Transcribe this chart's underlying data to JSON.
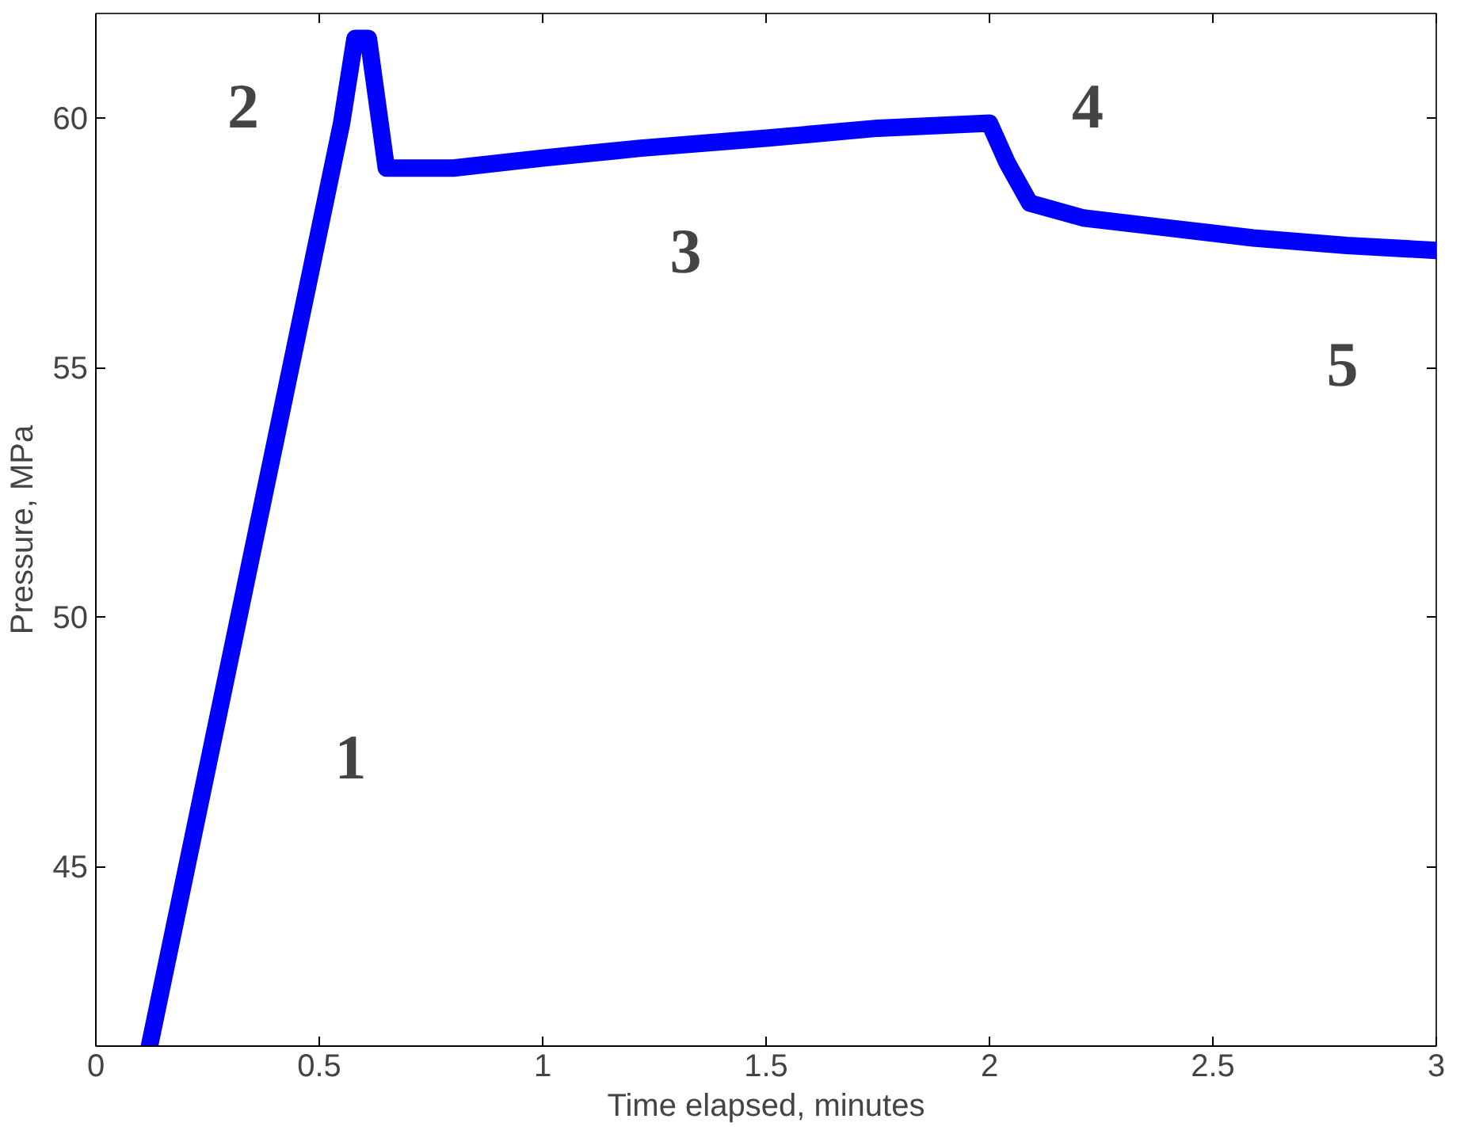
{
  "chart_data": {
    "type": "line",
    "xlabel": "Time elapsed, minutes",
    "ylabel": "Pressure, MPa",
    "xlim": [
      0,
      3
    ],
    "ylim": [
      41.4,
      62.1
    ],
    "xticks": [
      0,
      0.5,
      1,
      1.5,
      2,
      2.5,
      3
    ],
    "yticks": [
      45,
      50,
      55,
      60
    ],
    "grid": false,
    "series": [
      {
        "color": "#0000ff",
        "x": [
          0.12,
          0.55,
          0.58,
          0.61,
          0.65,
          0.8,
          1.0,
          1.22,
          1.5,
          1.75,
          2.0,
          2.04,
          2.09,
          2.21,
          2.4,
          2.59,
          2.8,
          3.0
        ],
        "values": [
          41.4,
          59.9,
          61.6,
          61.6,
          59.0,
          59.0,
          59.2,
          59.4,
          59.6,
          59.8,
          59.9,
          59.1,
          58.3,
          58.0,
          57.8,
          57.6,
          57.45,
          57.35
        ]
      }
    ],
    "annotations": [
      "1",
      "2",
      "3",
      "4",
      "5"
    ]
  }
}
